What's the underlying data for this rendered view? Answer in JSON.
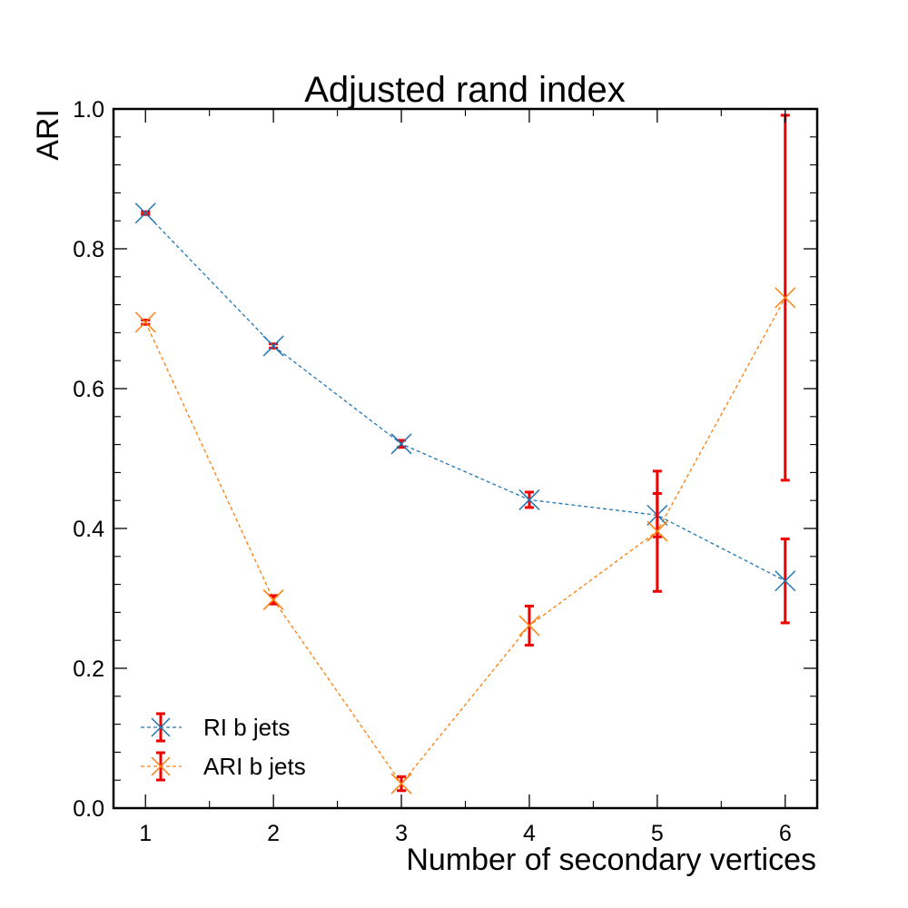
{
  "chart_data": {
    "type": "line",
    "title": "Adjusted rand index",
    "xlabel": "Number of secondary vertices",
    "ylabel": "ARI",
    "xlim": [
      0.75,
      6.25
    ],
    "ylim": [
      0.0,
      1.0
    ],
    "x": [
      1,
      2,
      3,
      4,
      5,
      6
    ],
    "x_ticks": [
      1,
      2,
      3,
      4,
      5,
      6
    ],
    "x_tick_labels": [
      "1",
      "2",
      "3",
      "4",
      "5",
      "6"
    ],
    "y_ticks": [
      0.0,
      0.2,
      0.4,
      0.6,
      0.8,
      1.0
    ],
    "y_tick_labels": [
      "0.0",
      "0.2",
      "0.4",
      "0.6",
      "0.8",
      "1.0"
    ],
    "grid": false,
    "legend_position": "bottom-left",
    "error_bar_color": "#ee0000",
    "series": [
      {
        "name": "RI b jets",
        "color": "#1f77b4",
        "values": [
          0.851,
          0.661,
          0.521,
          0.441,
          0.419,
          0.325
        ],
        "errors": [
          0.002,
          0.003,
          0.005,
          0.011,
          0.031,
          0.06
        ]
      },
      {
        "name": "ARI b jets",
        "color": "#ff7f0e",
        "values": [
          0.695,
          0.298,
          0.035,
          0.261,
          0.396,
          0.73
        ],
        "errors": [
          0.003,
          0.006,
          0.01,
          0.028,
          0.086,
          0.261
        ]
      }
    ]
  }
}
